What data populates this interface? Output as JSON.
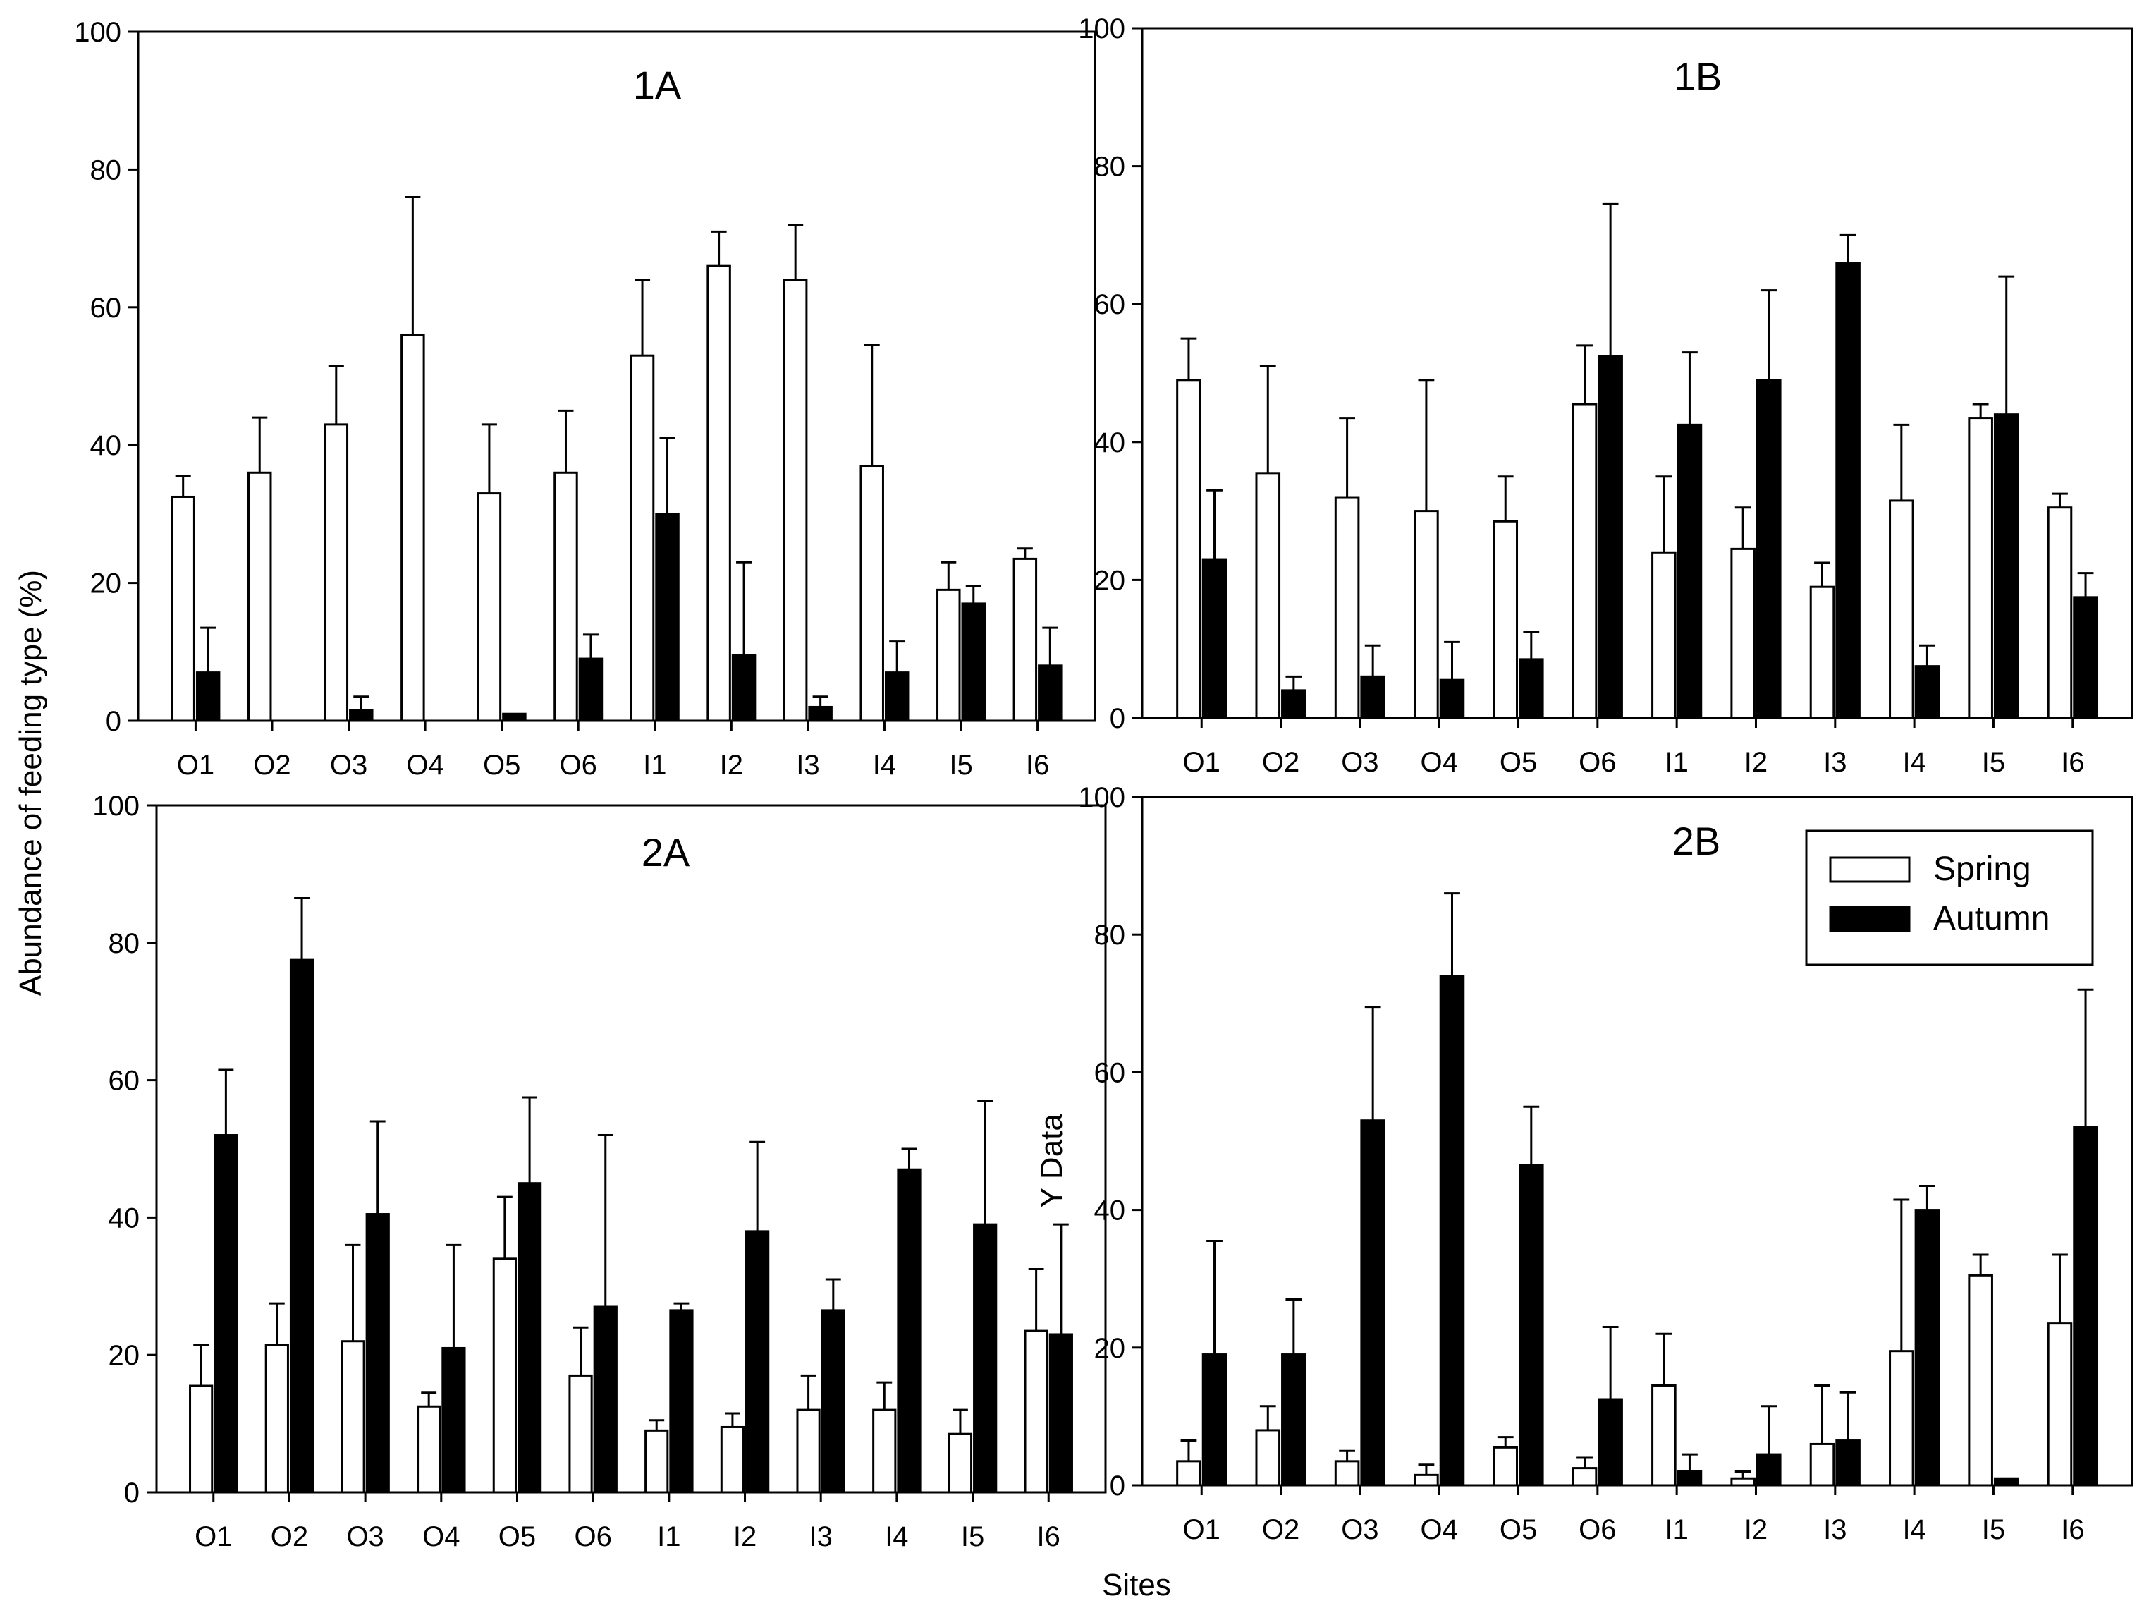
{
  "chart_data": [
    {
      "id": "1A",
      "type": "bar",
      "title": "1A",
      "categories": [
        "O1",
        "O2",
        "O3",
        "O4",
        "O5",
        "O6",
        "I1",
        "I2",
        "I3",
        "I4",
        "I5",
        "I6"
      ],
      "ylim": [
        0,
        100
      ],
      "yticks": [
        0,
        20,
        40,
        60,
        80,
        100
      ],
      "series": [
        {
          "name": "Spring",
          "values": [
            32.5,
            36,
            43,
            56,
            33,
            36,
            53,
            66,
            64,
            37,
            19,
            23.5
          ],
          "errors": [
            3,
            8,
            8.5,
            20,
            10,
            9,
            11,
            5,
            8,
            17.5,
            4,
            1.5
          ]
        },
        {
          "name": "Autumn",
          "values": [
            7,
            0,
            1.5,
            0,
            1,
            9,
            30,
            9.5,
            2,
            7,
            17,
            8
          ],
          "errors": [
            6.5,
            0,
            2,
            0,
            0,
            3.5,
            11,
            13.5,
            1.5,
            4.5,
            2.5,
            5.5
          ]
        }
      ]
    },
    {
      "id": "1B",
      "type": "bar",
      "title": "1B",
      "categories": [
        "O1",
        "O2",
        "O3",
        "O4",
        "O5",
        "O6",
        "I1",
        "I2",
        "I3",
        "I4",
        "I5",
        "I6"
      ],
      "ylim": [
        0,
        100
      ],
      "yticks": [
        0,
        20,
        40,
        60,
        80,
        100
      ],
      "series": [
        {
          "name": "Spring",
          "values": [
            49,
            35.5,
            32,
            30,
            28.5,
            45.5,
            24,
            24.5,
            19,
            31.5,
            43.5,
            30.5
          ],
          "errors": [
            6,
            15.5,
            11.5,
            19,
            6.5,
            8.5,
            11,
            6,
            3.5,
            11,
            2,
            2
          ]
        },
        {
          "name": "Autumn",
          "values": [
            23,
            4,
            6,
            5.5,
            8.5,
            52.5,
            42.5,
            49,
            66,
            7.5,
            44,
            17.5
          ],
          "errors": [
            10,
            2,
            4.5,
            5.5,
            4,
            22,
            10.5,
            13,
            4,
            3,
            20,
            3.5
          ]
        }
      ]
    },
    {
      "id": "2A",
      "type": "bar",
      "title": "2A",
      "categories": [
        "O1",
        "O2",
        "O3",
        "O4",
        "O5",
        "O6",
        "I1",
        "I2",
        "I3",
        "I4",
        "I5",
        "I6"
      ],
      "ylim": [
        0,
        100
      ],
      "yticks": [
        0,
        20,
        40,
        60,
        80,
        100
      ],
      "series": [
        {
          "name": "Spring",
          "values": [
            15.5,
            21.5,
            22,
            12.5,
            34,
            17,
            9,
            9.5,
            12,
            12,
            8.5,
            23.5
          ],
          "errors": [
            6,
            6,
            14,
            2,
            9,
            7,
            1.5,
            2,
            5,
            4,
            3.5,
            9
          ]
        },
        {
          "name": "Autumn",
          "values": [
            52,
            77.5,
            40.5,
            21,
            45,
            27,
            26.5,
            38,
            26.5,
            47,
            39,
            23
          ],
          "errors": [
            9.5,
            9,
            13.5,
            15,
            12.5,
            25,
            1,
            13,
            4.5,
            3,
            18,
            16
          ]
        }
      ]
    },
    {
      "id": "2B",
      "type": "bar",
      "title": "2B",
      "categories": [
        "O1",
        "O2",
        "O3",
        "O4",
        "O5",
        "O6",
        "I1",
        "I2",
        "I3",
        "I4",
        "I5",
        "I6"
      ],
      "ylim": [
        0,
        100
      ],
      "yticks": [
        0,
        20,
        40,
        60,
        80,
        100
      ],
      "ylabel": "Y Data",
      "legend": {
        "position": "top-right",
        "entries": [
          "Spring",
          "Autumn"
        ]
      },
      "series": [
        {
          "name": "Spring",
          "values": [
            3.5,
            8,
            3.5,
            1.5,
            5.5,
            2.5,
            14.5,
            1,
            6,
            19.5,
            30.5,
            23.5
          ],
          "errors": [
            3,
            3.5,
            1.5,
            1.5,
            1.5,
            1.5,
            7.5,
            1,
            8.5,
            22,
            3,
            10
          ]
        },
        {
          "name": "Autumn",
          "values": [
            19,
            19,
            53,
            74,
            46.5,
            12.5,
            2,
            4.5,
            6.5,
            40,
            1,
            52
          ],
          "errors": [
            16.5,
            8,
            16.5,
            12,
            8.5,
            10.5,
            2.5,
            7,
            7,
            3.5,
            0,
            20
          ]
        }
      ]
    }
  ],
  "labels": {
    "y_axis_title": "Abundance of feeding type (%)",
    "x_axis_title": "Sites"
  }
}
